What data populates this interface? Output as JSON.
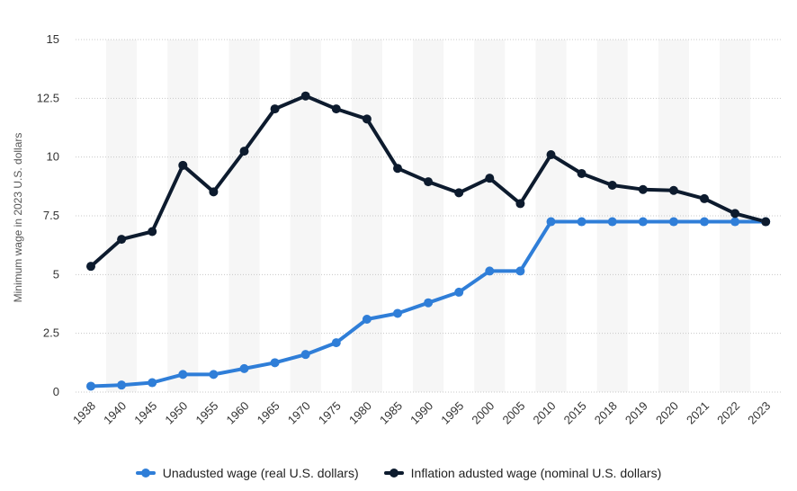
{
  "chart_data": {
    "type": "line",
    "categories": [
      "1938",
      "1940",
      "1945",
      "1950",
      "1955",
      "1960",
      "1965",
      "1970",
      "1975",
      "1980",
      "1985",
      "1990",
      "1995",
      "2000",
      "2005",
      "2010",
      "2015",
      "2018",
      "2019",
      "2020",
      "2021",
      "2022",
      "2023"
    ],
    "series": [
      {
        "name": "Unadusted wage (real U.S. dollars)",
        "color": "#2f7ed8",
        "values": [
          0.25,
          0.3,
          0.4,
          0.75,
          0.75,
          1.0,
          1.25,
          1.6,
          2.1,
          3.1,
          3.35,
          3.8,
          4.25,
          5.15,
          5.15,
          7.25,
          7.25,
          7.25,
          7.25,
          7.25,
          7.25,
          7.25,
          7.25
        ]
      },
      {
        "name": "Inflation adusted wage (nominal U.S. dollars)",
        "color": "#0d1b2e",
        "values": [
          5.35,
          6.5,
          6.83,
          9.65,
          8.52,
          10.25,
          12.05,
          12.6,
          12.05,
          11.62,
          9.52,
          8.95,
          8.48,
          9.1,
          8.02,
          10.1,
          9.3,
          8.8,
          8.62,
          8.58,
          8.23,
          7.6,
          7.25
        ]
      }
    ],
    "ylabel": "Minimum wage in 2023 U.S. dollars",
    "ylim": [
      0,
      15
    ],
    "yticks": [
      {
        "value": 0,
        "label": "0"
      },
      {
        "value": 2.5,
        "label": "2.5"
      },
      {
        "value": 5,
        "label": "5"
      },
      {
        "value": 7.5,
        "label": "7.5"
      },
      {
        "value": 10,
        "label": "10"
      },
      {
        "value": 12.5,
        "label": "12.5"
      },
      {
        "value": 15,
        "label": "15"
      }
    ],
    "grid": "horizontal dotted",
    "legend_position": "bottom-center"
  }
}
